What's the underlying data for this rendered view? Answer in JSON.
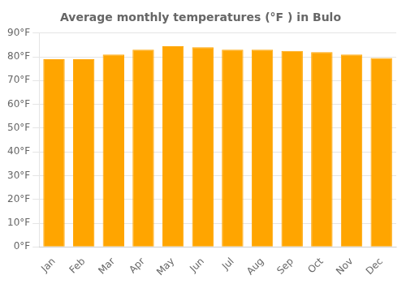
{
  "chart_data": {
    "type": "bar",
    "title": "Average monthly temperatures (°F ) in Bulo",
    "categories": [
      "Jan",
      "Feb",
      "Mar",
      "Apr",
      "May",
      "Jun",
      "Jul",
      "Aug",
      "Sep",
      "Oct",
      "Nov",
      "Dec"
    ],
    "values": [
      79,
      79,
      81,
      83,
      84.5,
      84,
      83,
      83,
      82.5,
      82,
      81,
      79.5
    ],
    "color": "#FFA500",
    "ylim": [
      0,
      90
    ],
    "yticks": [
      {
        "value": 0,
        "label": "0°F"
      },
      {
        "value": 10,
        "label": "10°F"
      },
      {
        "value": 20,
        "label": "20°F"
      },
      {
        "value": 30,
        "label": "30°F"
      },
      {
        "value": 40,
        "label": "40°F"
      },
      {
        "value": 50,
        "label": "50°F"
      },
      {
        "value": 60,
        "label": "60°F"
      },
      {
        "value": 70,
        "label": "70°F"
      },
      {
        "value": 80,
        "label": "80°F"
      },
      {
        "value": 90,
        "label": "90°F"
      }
    ],
    "grid": true
  }
}
